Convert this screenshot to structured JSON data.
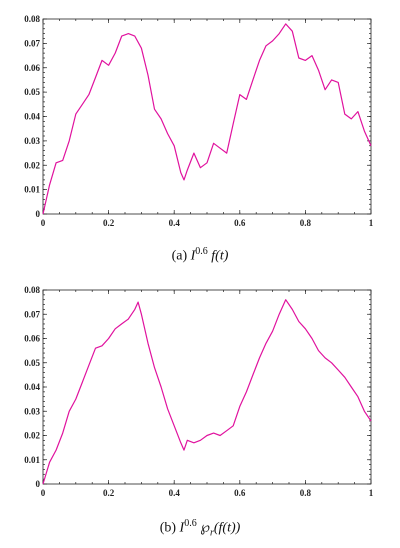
{
  "chart_data": [
    {
      "type": "line",
      "caption": "(a) I^0.6 f(t)",
      "caption_parts": {
        "prefix": "(a) ",
        "base": "I",
        "sup": "0.6",
        "rest": " f(t)"
      },
      "xlim": [
        0,
        1
      ],
      "ylim": [
        0,
        0.08
      ],
      "xticks": [
        0,
        0.2,
        0.4,
        0.6,
        0.8,
        1
      ],
      "xtick_labels": [
        "0",
        "0.2",
        "0.4",
        "0.6",
        "0.8",
        "1"
      ],
      "yticks": [
        0,
        0.01,
        0.02,
        0.03,
        0.04,
        0.05,
        0.06,
        0.07,
        0.08
      ],
      "ytick_labels": [
        "0",
        "0.01",
        "0.02",
        "0.03",
        "0.04",
        "0.05",
        "0.06",
        "0.07",
        "0.08"
      ],
      "color": "#e0129e",
      "series": [
        {
          "x": [
            0,
            0.02,
            0.04,
            0.06,
            0.08,
            0.1,
            0.12,
            0.14,
            0.16,
            0.18,
            0.2,
            0.22,
            0.24,
            0.26,
            0.28,
            0.3,
            0.32,
            0.34,
            0.36,
            0.38,
            0.4,
            0.42,
            0.43,
            0.44,
            0.46,
            0.48,
            0.5,
            0.52,
            0.54,
            0.56,
            0.58,
            0.6,
            0.62,
            0.64,
            0.66,
            0.68,
            0.7,
            0.72,
            0.74,
            0.76,
            0.78,
            0.8,
            0.82,
            0.84,
            0.86,
            0.88,
            0.9,
            0.92,
            0.94,
            0.96,
            0.98,
            1
          ],
          "y": [
            0.0,
            0.012,
            0.021,
            0.022,
            0.03,
            0.041,
            0.045,
            0.049,
            0.056,
            0.063,
            0.061,
            0.066,
            0.073,
            0.074,
            0.073,
            0.068,
            0.057,
            0.043,
            0.039,
            0.033,
            0.028,
            0.017,
            0.014,
            0.018,
            0.025,
            0.019,
            0.021,
            0.029,
            0.027,
            0.025,
            0.037,
            0.049,
            0.047,
            0.055,
            0.063,
            0.069,
            0.071,
            0.074,
            0.078,
            0.075,
            0.064,
            0.063,
            0.065,
            0.059,
            0.051,
            0.055,
            0.054,
            0.041,
            0.039,
            0.042,
            0.034,
            0.028
          ]
        }
      ]
    },
    {
      "type": "line",
      "caption": "(b) I^0.6 ℘_r(f(t))",
      "caption_parts": {
        "prefix": "(b) ",
        "base": "I",
        "sup": "0.6",
        "rest_before_sub": " ℘",
        "sub": "r",
        "rest": "(f(t))"
      },
      "xlim": [
        0,
        1
      ],
      "ylim": [
        0,
        0.08
      ],
      "xticks": [
        0,
        0.2,
        0.4,
        0.6,
        0.8,
        1
      ],
      "xtick_labels": [
        "0",
        "0.2",
        "0.4",
        "0.6",
        "0.8",
        "1"
      ],
      "yticks": [
        0,
        0.01,
        0.02,
        0.03,
        0.04,
        0.05,
        0.06,
        0.07,
        0.08
      ],
      "ytick_labels": [
        "0",
        "0.01",
        "0.02",
        "0.03",
        "0.04",
        "0.05",
        "0.06",
        "0.07",
        "0.08"
      ],
      "color": "#e0129e",
      "series": [
        {
          "x": [
            0,
            0.02,
            0.04,
            0.06,
            0.08,
            0.1,
            0.12,
            0.14,
            0.16,
            0.18,
            0.2,
            0.22,
            0.24,
            0.26,
            0.28,
            0.29,
            0.3,
            0.32,
            0.34,
            0.36,
            0.38,
            0.4,
            0.42,
            0.43,
            0.44,
            0.46,
            0.48,
            0.5,
            0.52,
            0.54,
            0.56,
            0.58,
            0.6,
            0.62,
            0.64,
            0.66,
            0.68,
            0.7,
            0.72,
            0.74,
            0.76,
            0.78,
            0.8,
            0.82,
            0.84,
            0.86,
            0.88,
            0.9,
            0.92,
            0.94,
            0.96,
            0.98,
            1
          ],
          "y": [
            0.0,
            0.009,
            0.014,
            0.021,
            0.03,
            0.035,
            0.042,
            0.049,
            0.056,
            0.057,
            0.06,
            0.064,
            0.066,
            0.068,
            0.072,
            0.075,
            0.07,
            0.058,
            0.048,
            0.04,
            0.031,
            0.024,
            0.017,
            0.014,
            0.018,
            0.017,
            0.018,
            0.02,
            0.021,
            0.02,
            0.022,
            0.024,
            0.032,
            0.038,
            0.045,
            0.052,
            0.058,
            0.063,
            0.07,
            0.076,
            0.072,
            0.067,
            0.064,
            0.06,
            0.055,
            0.052,
            0.05,
            0.047,
            0.044,
            0.04,
            0.036,
            0.03,
            0.026
          ]
        }
      ]
    }
  ]
}
